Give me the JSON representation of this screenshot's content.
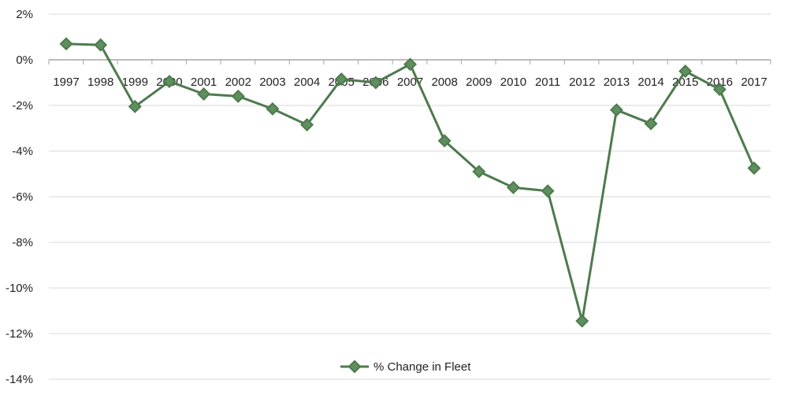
{
  "chart_data": {
    "type": "line",
    "title": "",
    "xlabel": "",
    "ylabel": "",
    "categories": [
      "1997",
      "1998",
      "1999",
      "2000",
      "2001",
      "2002",
      "2003",
      "2004",
      "2005",
      "2006",
      "2007",
      "2008",
      "2009",
      "2010",
      "2011",
      "2012",
      "2013",
      "2014",
      "2015",
      "2016",
      "2017"
    ],
    "series": [
      {
        "name": "% Change in Fleet",
        "values": [
          0.7,
          0.65,
          -2.05,
          -0.95,
          -1.5,
          -1.6,
          -2.15,
          -2.85,
          -0.85,
          -1.0,
          -0.2,
          -3.55,
          -4.9,
          -5.6,
          -5.75,
          -11.45,
          -2.2,
          -2.8,
          -0.5,
          -1.3,
          -4.75
        ]
      }
    ],
    "ylim": [
      -14,
      2
    ],
    "yticks": [
      "2%",
      "0%",
      "-2%",
      "-4%",
      "-6%",
      "-8%",
      "-10%",
      "-12%",
      "-14%"
    ],
    "grid": true,
    "legend_position": "bottom",
    "colors": {
      "series": "#4e7a4e",
      "marker_fill": "#5e8f5e",
      "grid": "#d9d9d9",
      "axis": "#a6a6a6"
    }
  }
}
